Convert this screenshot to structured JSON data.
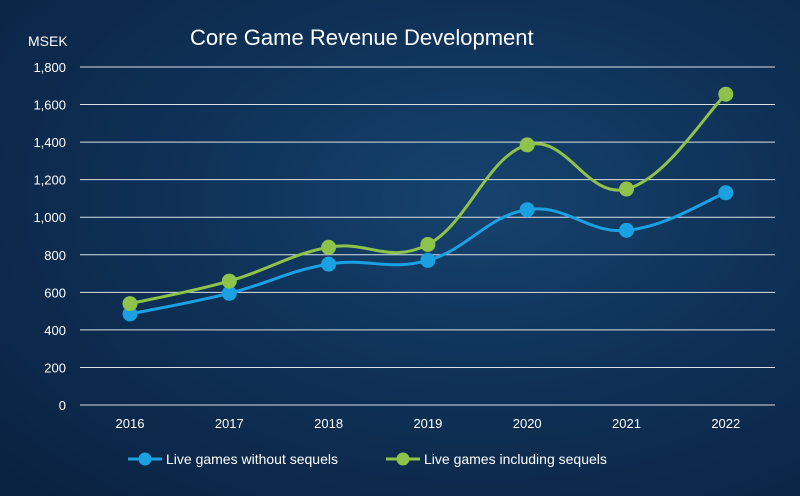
{
  "chart_data": {
    "type": "line",
    "title": "Core Game Revenue Development",
    "ylabel": "MSEK",
    "xlabel": "",
    "categories": [
      "2016",
      "2017",
      "2018",
      "2019",
      "2020",
      "2021",
      "2022"
    ],
    "ylim": [
      0,
      1800
    ],
    "yticks": [
      0,
      200,
      400,
      600,
      800,
      1000,
      1200,
      1400,
      1600,
      1800
    ],
    "ytick_labels": [
      "0",
      "200",
      "400",
      "600",
      "800",
      "1,000",
      "1,200",
      "1,400",
      "1,600",
      "1,800"
    ],
    "grid": true,
    "legend_position": "bottom",
    "smooth": true,
    "series": [
      {
        "name": "Live games without sequels",
        "color": "#1ba1e2",
        "values": [
          485,
          595,
          750,
          770,
          1040,
          930,
          1130
        ]
      },
      {
        "name": "Live games including sequels",
        "color": "#8dc34b",
        "values": [
          540,
          660,
          840,
          855,
          1385,
          1150,
          1655
        ]
      }
    ]
  }
}
